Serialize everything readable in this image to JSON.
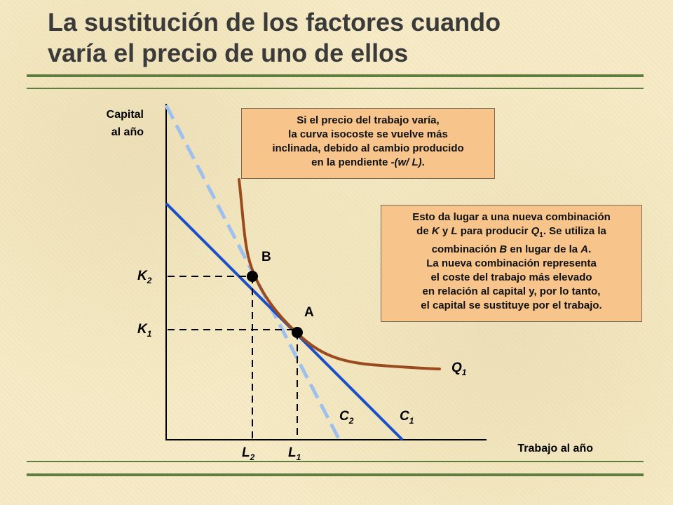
{
  "title": {
    "line1": "La sustitución de los factores cuando",
    "line2": "varía el precio de uno de ellos"
  },
  "axes": {
    "y_label_line1": "Capital",
    "y_label_line2": "al año",
    "x_label": "Trabajo al año"
  },
  "labels": {
    "K": "K",
    "L": "L",
    "C": "C",
    "Q": "Q",
    "sub_1": "1",
    "sub_2": "2",
    "point_A": "A",
    "point_B": "B"
  },
  "callout_top": {
    "line1": "Si el precio del trabajo varía,",
    "line2": "la curva isocoste se vuelve más",
    "line3": "inclinada, debido al cambio producido",
    "line4_a": "en la pendiente ",
    "line4_b": "-(w/ L)",
    "line4_c": "."
  },
  "callout_right": {
    "line1": "Esto da lugar a una nueva combinación",
    "line2_a": "de ",
    "line2_K": "K",
    "line2_b": " y ",
    "line2_L": "L",
    "line2_c": " para producir ",
    "line2_Q": "Q",
    "line2_sub": "1",
    "line2_d": ". Se utiliza la",
    "line3_a": "combinación ",
    "line3_B": "B",
    "line3_b": " en lugar de la ",
    "line3_A": "A",
    "line3_c": ".",
    "line4": "La nueva combinación representa",
    "line5": "el coste del trabajo más elevado",
    "line6": "en relación al capital y, por lo tanto,",
    "line7": "el capital se sustituye por el trabajo."
  },
  "colors": {
    "isocost_C1": "#1b4fc7",
    "isocost_C2": "#9ec0ee",
    "isoquant_Q1": "#9b4a1e",
    "callout_bg": "#f7c48c",
    "rule": "#5f7d3f",
    "title_text": "#3a3a3a"
  }
}
